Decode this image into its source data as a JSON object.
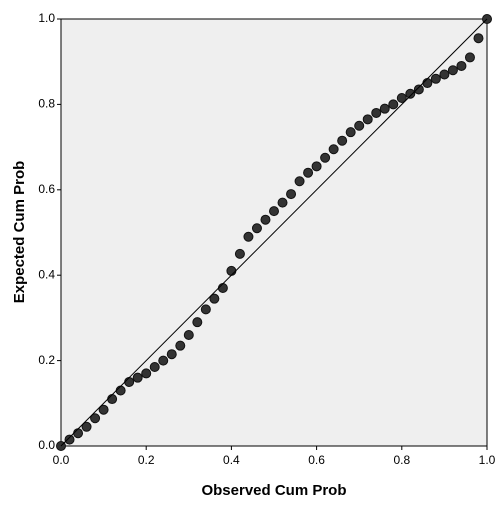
{
  "chart_data": {
    "type": "scatter",
    "x_label": "Observed Cum Prob",
    "y_label": "Expected Cum Prob",
    "x": [
      0,
      0.02,
      0.04,
      0.06,
      0.08,
      0.1,
      0.12,
      0.14,
      0.16,
      0.18,
      0.2,
      0.22,
      0.24,
      0.26,
      0.28,
      0.3,
      0.32,
      0.34,
      0.36,
      0.38,
      0.4,
      0.42,
      0.44,
      0.46,
      0.48,
      0.5,
      0.52,
      0.54,
      0.56,
      0.58,
      0.6,
      0.62,
      0.64,
      0.66,
      0.68,
      0.7,
      0.72,
      0.74,
      0.76,
      0.78,
      0.8,
      0.82,
      0.84,
      0.86,
      0.88,
      0.9,
      0.92,
      0.94,
      0.96,
      0.98,
      1.0
    ],
    "values": [
      0,
      0.015,
      0.03,
      0.045,
      0.065,
      0.085,
      0.11,
      0.13,
      0.15,
      0.16,
      0.17,
      0.185,
      0.2,
      0.215,
      0.235,
      0.26,
      0.29,
      0.32,
      0.345,
      0.37,
      0.41,
      0.45,
      0.49,
      0.51,
      0.53,
      0.55,
      0.57,
      0.59,
      0.62,
      0.64,
      0.655,
      0.675,
      0.695,
      0.715,
      0.735,
      0.75,
      0.765,
      0.78,
      0.79,
      0.8,
      0.815,
      0.825,
      0.835,
      0.85,
      0.86,
      0.87,
      0.88,
      0.89,
      0.91,
      0.955,
      1.0
    ],
    "color": "#333333",
    "xlim": [
      0,
      1
    ],
    "ylim": [
      0,
      1
    ],
    "xticks": [
      {
        "value": 0,
        "label": "0.0"
      },
      0.2,
      0.4,
      0.6,
      0.8,
      {
        "value": 1,
        "label": "1.0"
      }
    ],
    "yticks": [
      {
        "value": 0,
        "label": "0.0"
      },
      0.2,
      0.4,
      0.6,
      0.8,
      {
        "value": 1,
        "label": "1.0"
      }
    ],
    "reference_line": true
  }
}
